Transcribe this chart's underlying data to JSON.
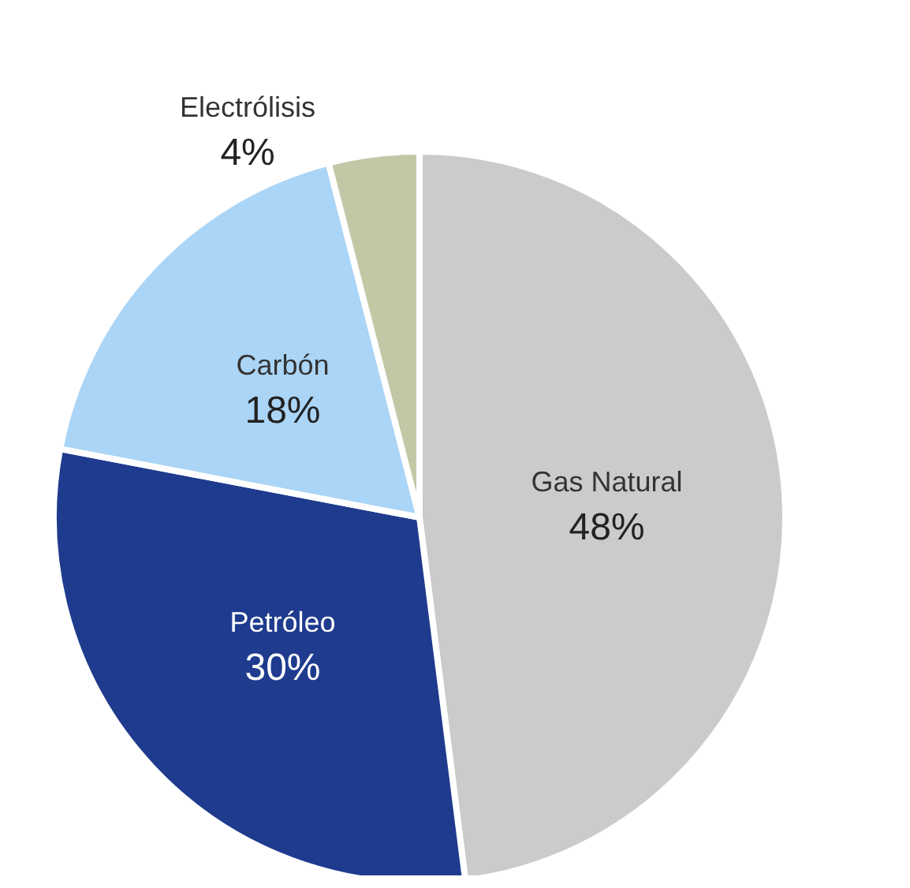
{
  "chart_data": {
    "type": "pie",
    "categories": [
      "Gas Natural",
      "Petróleo",
      "Carbón",
      "Electrólisis"
    ],
    "values": [
      48,
      30,
      18,
      4
    ],
    "colors": [
      "#cbcbcb",
      "#1e3b8e",
      "#abd5f6",
      "#c3c7a6"
    ],
    "value_labels": [
      "48%",
      "30%",
      "18%",
      "4%"
    ]
  }
}
